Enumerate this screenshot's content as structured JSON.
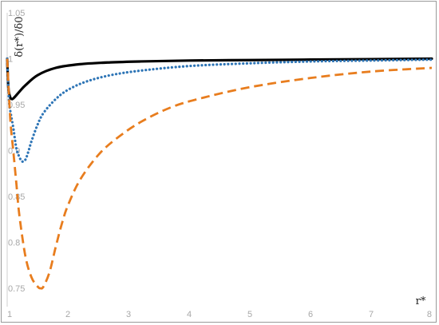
{
  "chart_data": {
    "type": "line",
    "title": "",
    "xlabel": "r*",
    "ylabel": "δ(r*)/δ0",
    "xlim": [
      1,
      8
    ],
    "ylim": [
      0.73,
      1.05
    ],
    "xticks": [
      "1",
      "2",
      "3",
      "4",
      "5",
      "6",
      "7",
      "8"
    ],
    "yticks": [
      "0.75",
      "0.8",
      "0.85",
      "0.9",
      "0.95",
      "1",
      "1.05"
    ],
    "grid": false,
    "legend": "none",
    "series": [
      {
        "style": "solid",
        "color": "#000000",
        "x": [
          1.0,
          1.02,
          1.05,
          1.08,
          1.12,
          1.2,
          1.3,
          1.5,
          1.8,
          2.2,
          2.7,
          3.2,
          4.0,
          5.0,
          6.0,
          7.0,
          8.0
        ],
        "y": [
          1.0,
          0.968,
          0.958,
          0.956,
          0.958,
          0.964,
          0.971,
          0.982,
          0.99,
          0.994,
          0.996,
          0.997,
          0.998,
          0.9985,
          0.999,
          0.9995,
          1.0
        ]
      },
      {
        "style": "dotted",
        "color": "#2e75b6",
        "x": [
          1.0,
          1.03,
          1.06,
          1.1,
          1.15,
          1.2,
          1.25,
          1.3,
          1.35,
          1.4,
          1.5,
          1.6,
          1.8,
          2.0,
          2.3,
          2.7,
          3.2,
          4.0,
          5.0,
          6.0,
          7.0,
          8.0
        ],
        "y": [
          1.0,
          0.955,
          0.94,
          0.925,
          0.903,
          0.893,
          0.888,
          0.89,
          0.899,
          0.91,
          0.928,
          0.941,
          0.956,
          0.966,
          0.975,
          0.982,
          0.987,
          0.992,
          0.995,
          0.997,
          0.998,
          0.999
        ]
      },
      {
        "style": "dashed",
        "color": "#e87d1e",
        "x": [
          1.0,
          1.05,
          1.1,
          1.15,
          1.2,
          1.3,
          1.4,
          1.5,
          1.55,
          1.6,
          1.7,
          1.8,
          1.9,
          2.0,
          2.2,
          2.5,
          2.8,
          3.2,
          3.7,
          4.2,
          5.0,
          6.0,
          7.0,
          8.0
        ],
        "y": [
          1.0,
          0.935,
          0.9,
          0.865,
          0.83,
          0.785,
          0.762,
          0.752,
          0.75,
          0.752,
          0.768,
          0.795,
          0.82,
          0.84,
          0.868,
          0.895,
          0.913,
          0.931,
          0.947,
          0.957,
          0.969,
          0.979,
          0.986,
          0.99
        ]
      }
    ]
  }
}
